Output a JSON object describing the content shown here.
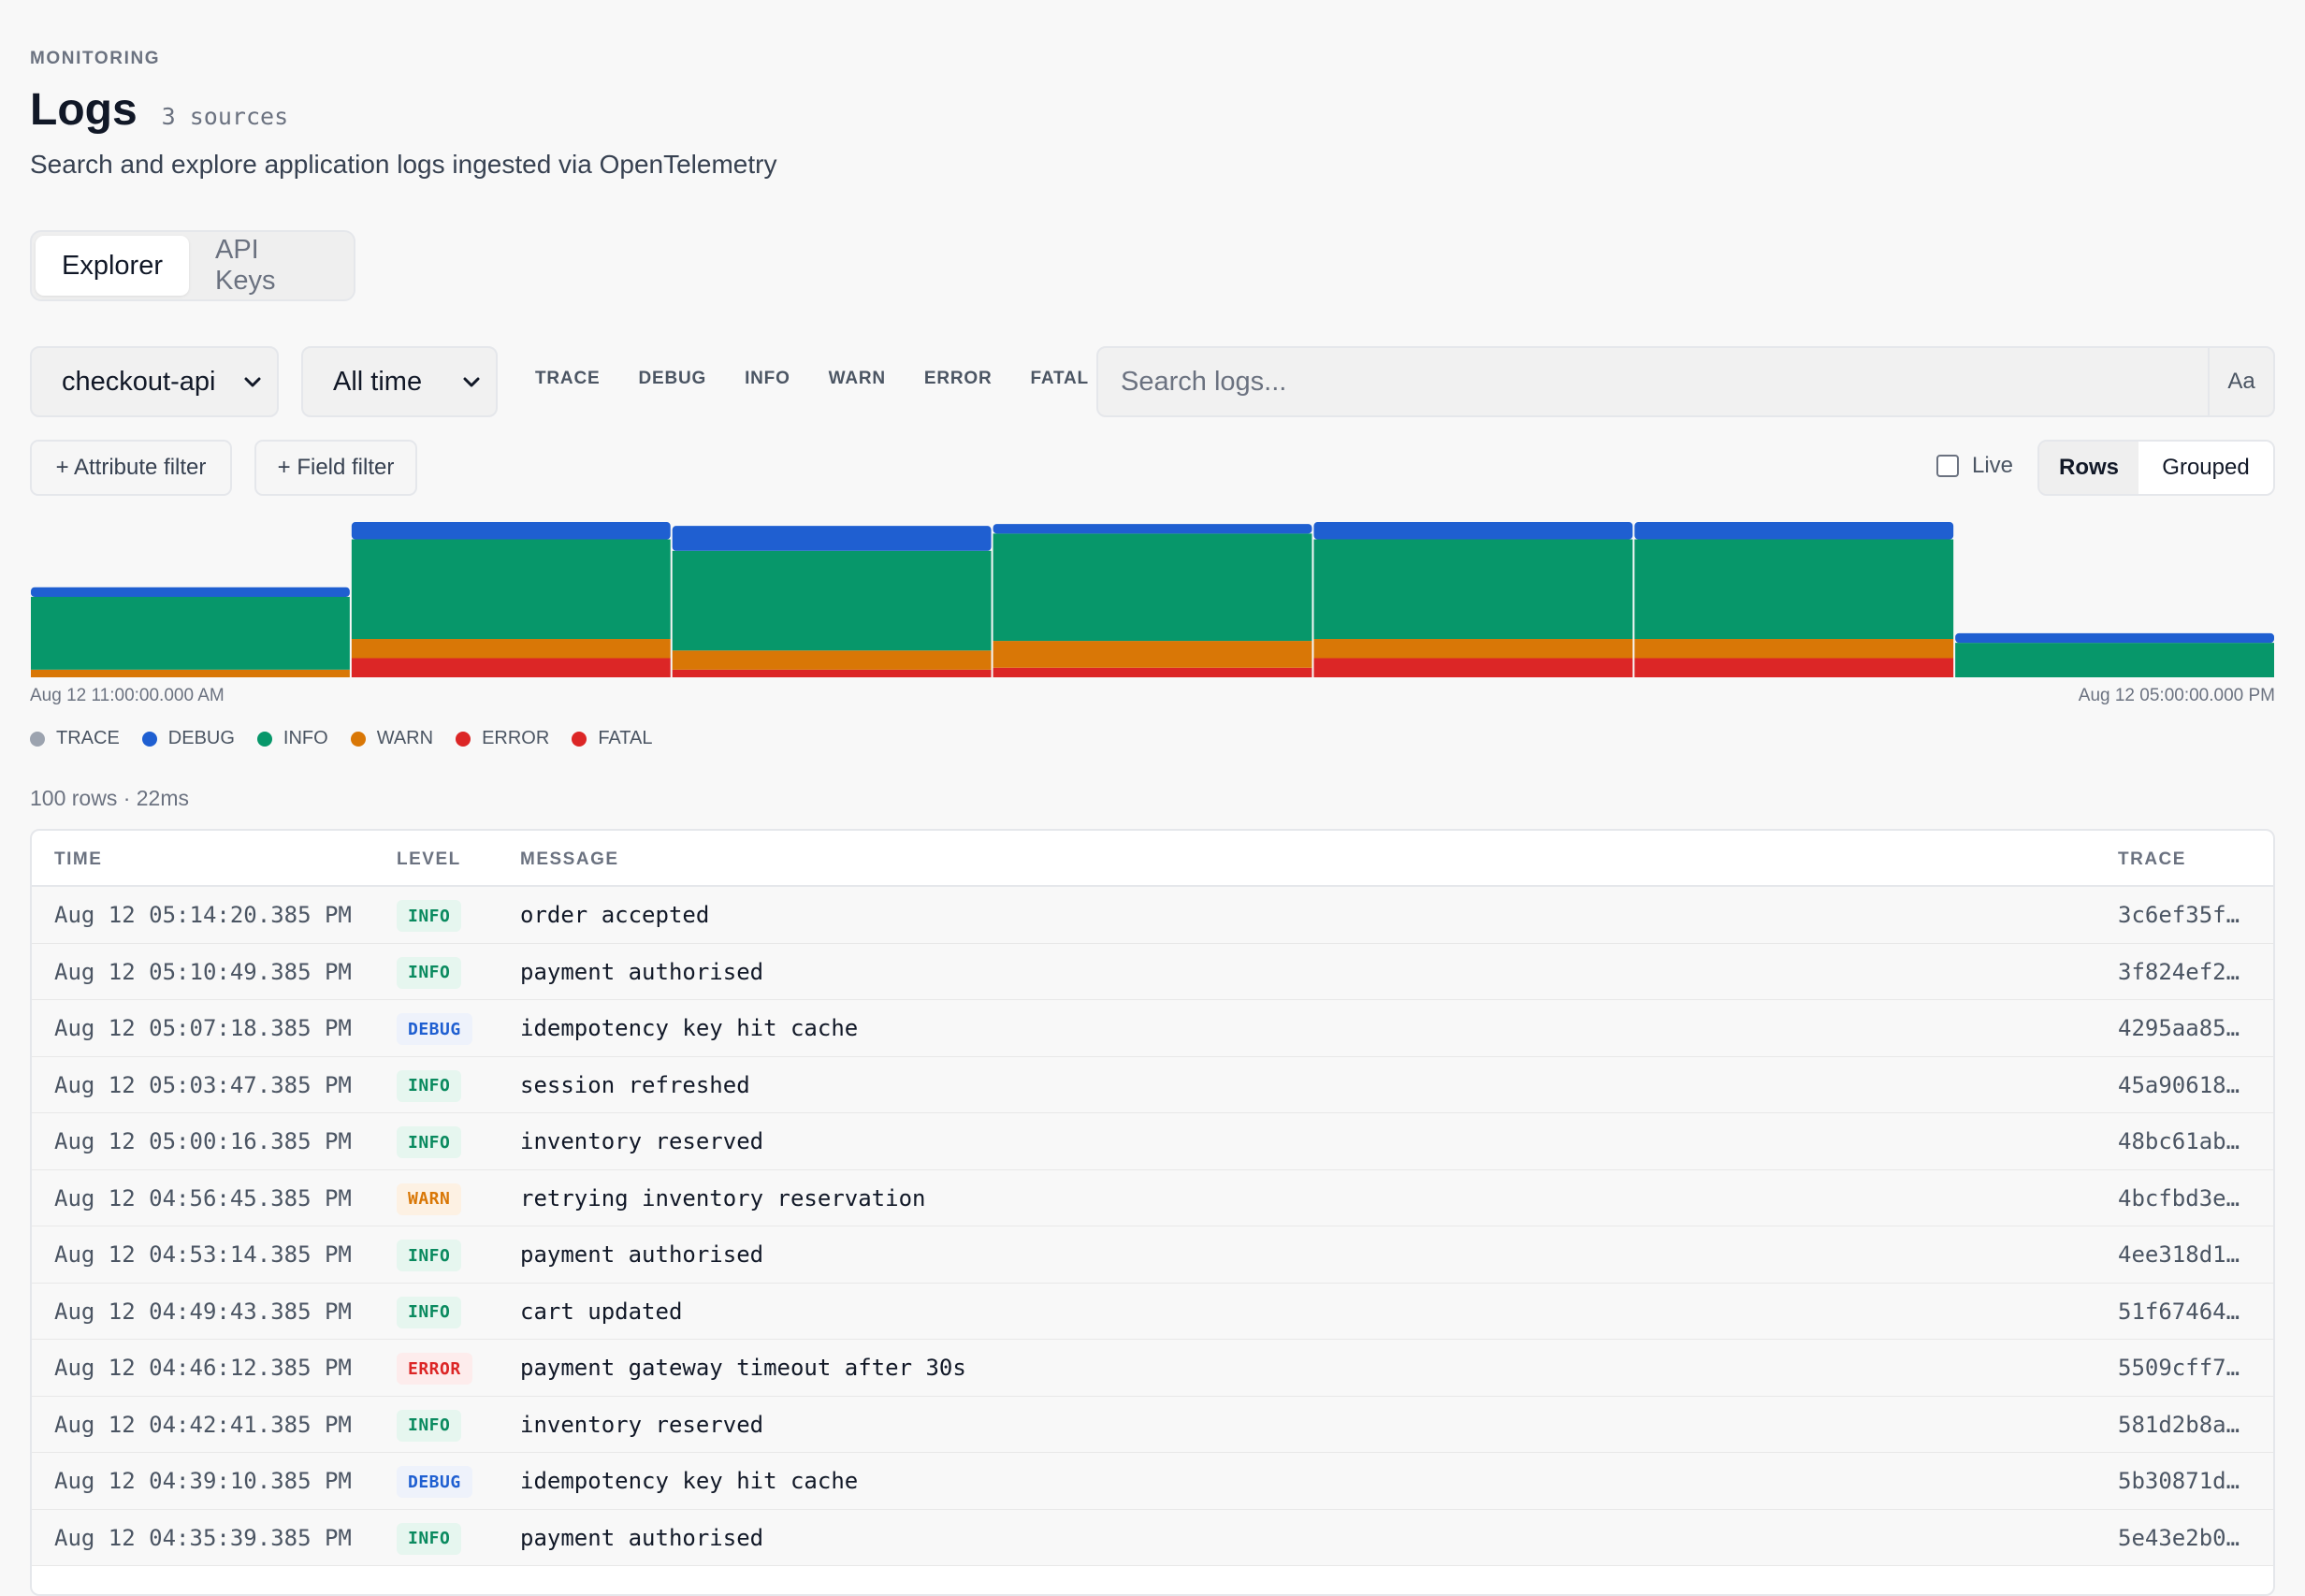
{
  "header": {
    "eyebrow": "MONITORING",
    "title": "Logs",
    "meta": "3 sources",
    "subtitle": "Search and explore application logs ingested via OpenTelemetry"
  },
  "tabs": [
    "Explorer",
    "API Keys"
  ],
  "active_tab": "Explorer",
  "filters": {
    "service": "checkout-api",
    "time_range": "All time",
    "levels": [
      "TRACE",
      "DEBUG",
      "INFO",
      "WARN",
      "ERROR",
      "FATAL"
    ],
    "search_placeholder": "Search logs...",
    "case_toggle": "Aa",
    "attribute_filter": "+ Attribute filter",
    "field_filter": "+ Field filter",
    "live_label": "Live",
    "live_checked": false,
    "view_modes": [
      "Rows",
      "Grouped"
    ],
    "active_view": "Rows"
  },
  "colors": {
    "TRACE": "#9ca3af",
    "DEBUG": "#1f5fd1",
    "INFO": "#07976a",
    "WARN": "#d97706",
    "ERROR": "#dc2626",
    "FATAL": "#dc2626"
  },
  "chart_data": {
    "type": "bar",
    "stacked": true,
    "x_start_label": "Aug 12 11:00:00.000 AM",
    "x_end_label": "Aug 12 05:00:00.000 PM",
    "series": [
      {
        "name": "ERROR",
        "values": [
          0,
          10,
          4,
          5,
          10,
          10,
          0
        ]
      },
      {
        "name": "WARN",
        "values": [
          4,
          10,
          10,
          14,
          10,
          10,
          0
        ]
      },
      {
        "name": "INFO",
        "values": [
          38,
          52,
          52,
          56,
          52,
          52,
          18
        ]
      },
      {
        "name": "DEBUG",
        "values": [
          5,
          9,
          13,
          5,
          9,
          9,
          5
        ]
      }
    ],
    "ymax": 82
  },
  "legend": [
    "TRACE",
    "DEBUG",
    "INFO",
    "WARN",
    "ERROR",
    "FATAL"
  ],
  "results": {
    "summary": "100 rows · 22ms",
    "columns": {
      "time": "TIME",
      "level": "LEVEL",
      "message": "MESSAGE",
      "trace": "TRACE"
    },
    "rows": [
      {
        "time": "Aug 12 05:14:20.385 PM",
        "level": "INFO",
        "message": "order accepted",
        "trace": "3c6ef35f…"
      },
      {
        "time": "Aug 12 05:10:49.385 PM",
        "level": "INFO",
        "message": "payment authorised",
        "trace": "3f824ef2…"
      },
      {
        "time": "Aug 12 05:07:18.385 PM",
        "level": "DEBUG",
        "message": "idempotency key hit cache",
        "trace": "4295aa85…"
      },
      {
        "time": "Aug 12 05:03:47.385 PM",
        "level": "INFO",
        "message": "session refreshed",
        "trace": "45a90618…"
      },
      {
        "time": "Aug 12 05:00:16.385 PM",
        "level": "INFO",
        "message": "inventory reserved",
        "trace": "48bc61ab…"
      },
      {
        "time": "Aug 12 04:56:45.385 PM",
        "level": "WARN",
        "message": "retrying inventory reservation",
        "trace": "4bcfbd3e…"
      },
      {
        "time": "Aug 12 04:53:14.385 PM",
        "level": "INFO",
        "message": "payment authorised",
        "trace": "4ee318d1…"
      },
      {
        "time": "Aug 12 04:49:43.385 PM",
        "level": "INFO",
        "message": "cart updated",
        "trace": "51f67464…"
      },
      {
        "time": "Aug 12 04:46:12.385 PM",
        "level": "ERROR",
        "message": "payment gateway timeout after 30s",
        "trace": "5509cff7…"
      },
      {
        "time": "Aug 12 04:42:41.385 PM",
        "level": "INFO",
        "message": "inventory reserved",
        "trace": "581d2b8a…"
      },
      {
        "time": "Aug 12 04:39:10.385 PM",
        "level": "DEBUG",
        "message": "idempotency key hit cache",
        "trace": "5b30871d…"
      },
      {
        "time": "Aug 12 04:35:39.385 PM",
        "level": "INFO",
        "message": "payment authorised",
        "trace": "5e43e2b0…"
      }
    ]
  }
}
